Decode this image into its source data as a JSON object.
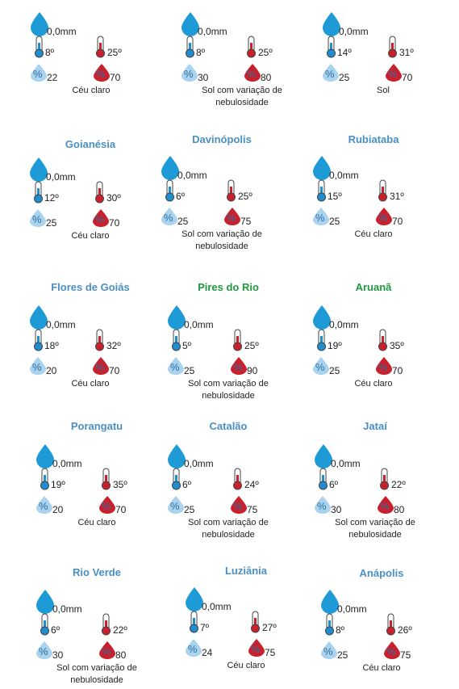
{
  "humidity_symbol": "%",
  "cards": [
    {
      "precipitation": "0,0mm",
      "temp_min": "8º",
      "temp_max": "25º",
      "humidity_min": "22",
      "humidity_max": "70",
      "description": "Céu claro"
    },
    {
      "precipitation": "0,0mm",
      "temp_min": "8º",
      "temp_max": "25º",
      "humidity_min": "30",
      "humidity_max": "80",
      "description": "Sol com variação de nebulosidade"
    },
    {
      "precipitation": "0,0mm",
      "temp_min": "14º",
      "temp_max": "31º",
      "humidity_min": "25",
      "humidity_max": "70",
      "description": "Sol"
    },
    {
      "title": "Goianésia",
      "title_color": "#4a8fc4",
      "precipitation": "0,0mm",
      "temp_min": "12º",
      "temp_max": "30º",
      "humidity_min": "25",
      "humidity_max": "70",
      "description": "Céu claro"
    },
    {
      "title": "Davinópolis",
      "title_color": "#4a8fc4",
      "precipitation": "0,0mm",
      "temp_min": "6º",
      "temp_max": "25º",
      "humidity_min": "25",
      "humidity_max": "75",
      "description": "Sol com variação de nebulosidade"
    },
    {
      "title": "Rubiataba",
      "title_color": "#4a8fc4",
      "precipitation": "0,0mm",
      "temp_min": "15º",
      "temp_max": "31º",
      "humidity_min": "25",
      "humidity_max": "70",
      "description": "Céu claro"
    },
    {
      "title": "Flores de Goiás",
      "title_color": "#4a8fc4",
      "precipitation": "0,0mm",
      "temp_min": "18º",
      "temp_max": "32º",
      "humidity_min": "20",
      "humidity_max": "70",
      "description": "Céu claro"
    },
    {
      "title": "Pires do Rio",
      "title_color": "#1e9a3e",
      "precipitation": "0,0mm",
      "temp_min": "5º",
      "temp_max": "25º",
      "humidity_min": "25",
      "humidity_max": "90",
      "description": "Sol com variação de nebulosidade"
    },
    {
      "title": "Aruanã",
      "title_color": "#1e9a3e",
      "precipitation": "0,0mm",
      "temp_min": "19º",
      "temp_max": "35º",
      "humidity_min": "25",
      "humidity_max": "70",
      "description": "Céu claro"
    },
    {
      "title": "Porangatu",
      "title_color": "#4a8fc4",
      "precipitation": "0,0mm",
      "temp_min": "19º",
      "temp_max": "35º",
      "humidity_min": "20",
      "humidity_max": "70",
      "description": "Céu claro"
    },
    {
      "title": "Catalão",
      "title_color": "#4a8fc4",
      "precipitation": "0,0mm",
      "temp_min": "6º",
      "temp_max": "24º",
      "humidity_min": "25",
      "humidity_max": "75",
      "description": "Sol com variação de nebulosidade"
    },
    {
      "title": "Jataí",
      "title_color": "#4a8fc4",
      "precipitation": "0,0mm",
      "temp_min": "6º",
      "temp_max": "22º",
      "humidity_min": "30",
      "humidity_max": "80",
      "description": "Sol com variação de nebulosidade"
    },
    {
      "title": "Rio Verde",
      "title_color": "#4a8fc4",
      "precipitation": "0,0mm",
      "temp_min": "6º",
      "temp_max": "22º",
      "humidity_min": "30",
      "humidity_max": "80",
      "description": "Sol com variação de nebulosidade"
    },
    {
      "title": "Luziânia",
      "title_color": "#4a8fc4",
      "precipitation": "0,0mm",
      "temp_min": "7º",
      "temp_max": "27º",
      "humidity_min": "24",
      "humidity_max": "75",
      "description": "Céu claro"
    },
    {
      "title": "Anápolis",
      "title_color": "#4a8fc4",
      "precipitation": "0,0mm",
      "temp_min": "8º",
      "temp_max": "26º",
      "humidity_min": "25",
      "humidity_max": "75",
      "description": "Céu claro"
    }
  ]
}
